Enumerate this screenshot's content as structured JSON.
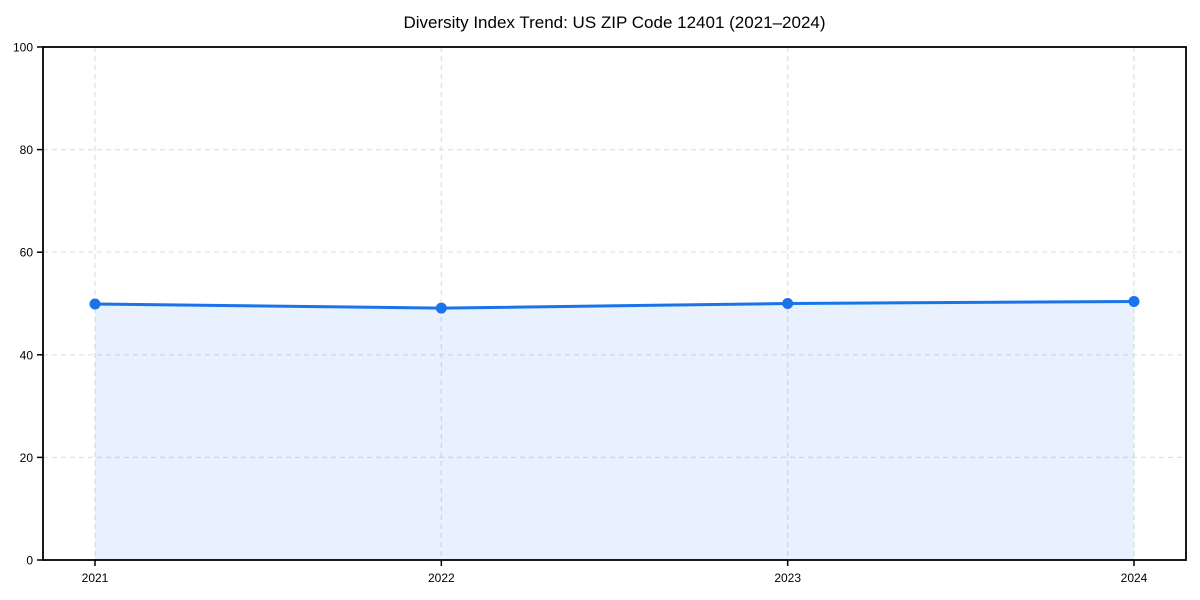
{
  "chart_data": {
    "type": "area",
    "title": "Diversity Index Trend: US ZIP Code 12401 (2021–2024)",
    "xlabel": "",
    "ylabel": "",
    "x": [
      2021,
      2022,
      2023,
      2024
    ],
    "xtick_labels": [
      "2021",
      "2022",
      "2023",
      "2024"
    ],
    "series": [
      {
        "name": "Diversity Index",
        "values": [
          49.9,
          49.1,
          50.0,
          50.4
        ]
      }
    ],
    "ylim": [
      0,
      100
    ],
    "yticks": [
      0,
      20,
      40,
      60,
      80,
      100
    ],
    "ytick_labels": [
      "0",
      "20",
      "40",
      "60",
      "80",
      "100"
    ],
    "grid": true,
    "grid_style": "dashed",
    "legend_position": "none",
    "colors": {
      "line": "#1a73e8",
      "marker": "#1a73e8",
      "area_fill": "rgba(26,115,232,0.10)",
      "gridline": "#e0e0e0",
      "spine": "#000000",
      "text": "#000000",
      "background": "#ffffff"
    }
  }
}
